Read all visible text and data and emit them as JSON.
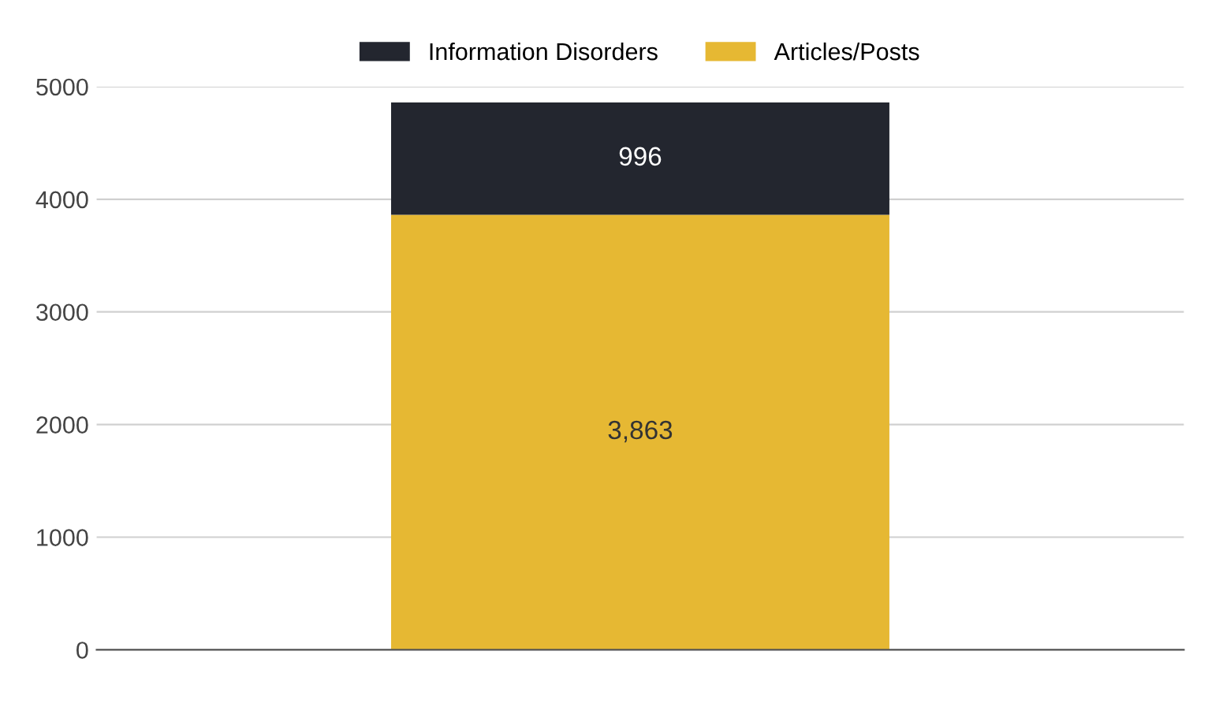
{
  "chart_data": {
    "type": "bar",
    "stacked": true,
    "categories": [
      null
    ],
    "series": [
      {
        "name": "Articles/Posts",
        "color": "#e6b833",
        "values": [
          3863
        ],
        "value_labels": [
          "3,863"
        ]
      },
      {
        "name": "Information Disorders",
        "color": "#23262f",
        "values": [
          996
        ],
        "value_labels": [
          "996"
        ]
      }
    ],
    "ylim": [
      0,
      5000
    ],
    "yticks": [
      0,
      1000,
      2000,
      3000,
      4000,
      5000
    ],
    "grid": "y",
    "legend": "top"
  }
}
